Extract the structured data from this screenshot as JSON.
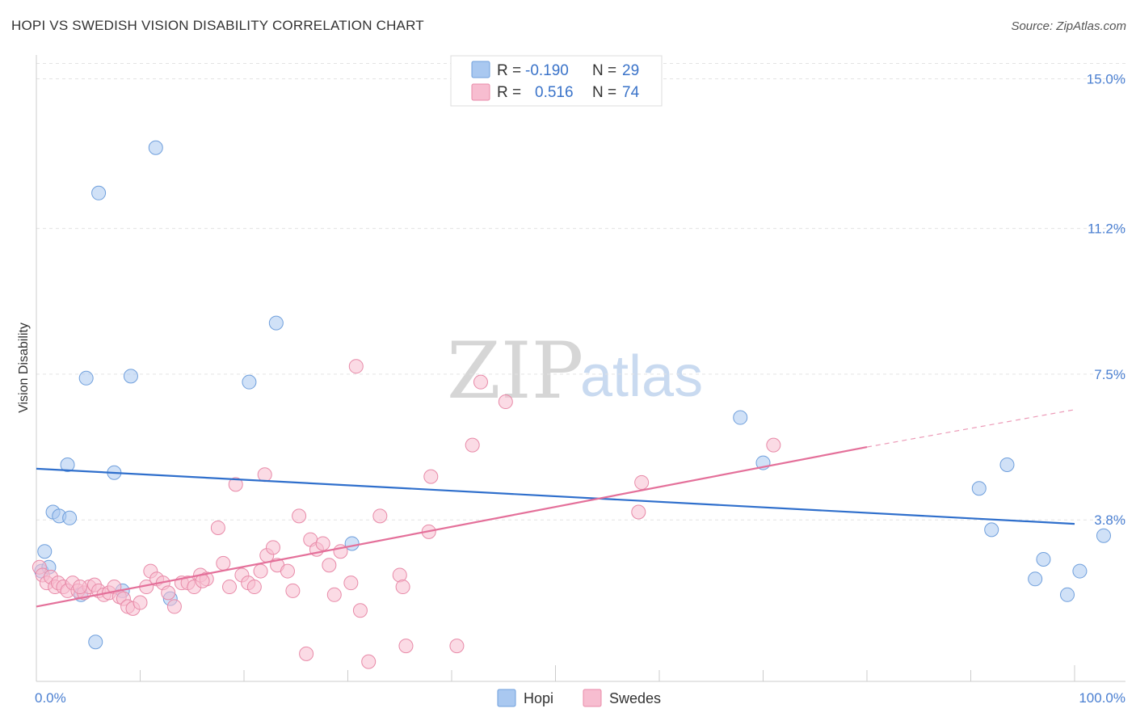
{
  "header": {
    "title": "HOPI VS SWEDISH VISION DISABILITY CORRELATION CHART",
    "source": "Source: ZipAtlas.com"
  },
  "watermark": {
    "zip": "ZIP",
    "atlas": "atlas"
  },
  "legend": {
    "rows": [
      {
        "r_label": "R =",
        "r_value": "-0.190",
        "n_label": "N =",
        "n_value": "29",
        "color": "#a9c8f0",
        "border": "#6f9fdc"
      },
      {
        "r_label": "R =",
        "r_value": "0.516",
        "n_label": "N =",
        "n_value": "74",
        "color": "#f7bdd0",
        "border": "#e88aa8"
      }
    ]
  },
  "bottom_legend": {
    "items": [
      "Hopi",
      "Swedes"
    ]
  },
  "chart_data": {
    "type": "scatter",
    "title": "HOPI VS SWEDISH VISION DISABILITY CORRELATION CHART",
    "xlabel": "",
    "ylabel": "Vision Disability",
    "xlim": [
      0,
      100
    ],
    "ylim": [
      0,
      15.5
    ],
    "x_tick_labels": [
      "0.0%",
      "100.0%"
    ],
    "y_ticks": [
      3.8,
      7.5,
      11.2,
      15.0
    ],
    "y_tick_labels": [
      "3.8%",
      "7.5%",
      "11.2%",
      "15.0%"
    ],
    "grid": true,
    "legend_position": "top-center",
    "series": [
      {
        "name": "Hopi",
        "color": "#6f9fdc",
        "fill": "#a9c8f0",
        "trend": {
          "x0": 0,
          "y0": 5.1,
          "x1": 100,
          "y1": 3.7
        },
        "points": [
          [
            0.5,
            2.5
          ],
          [
            0.8,
            3.0
          ],
          [
            1.2,
            2.6
          ],
          [
            1.6,
            4.0
          ],
          [
            2.2,
            3.9
          ],
          [
            3.0,
            5.2
          ],
          [
            3.2,
            3.85
          ],
          [
            4.3,
            1.9
          ],
          [
            4.8,
            7.4
          ],
          [
            5.7,
            0.7
          ],
          [
            6.0,
            12.1
          ],
          [
            7.5,
            5.0
          ],
          [
            8.3,
            2.0
          ],
          [
            9.1,
            7.45
          ],
          [
            11.5,
            13.25
          ],
          [
            12.9,
            1.8
          ],
          [
            20.5,
            7.3
          ],
          [
            23.1,
            8.8
          ],
          [
            30.4,
            3.2
          ],
          [
            67.8,
            6.4
          ],
          [
            70.0,
            5.25
          ],
          [
            90.8,
            4.6
          ],
          [
            92.0,
            3.55
          ],
          [
            93.5,
            5.2
          ],
          [
            96.2,
            2.3
          ],
          [
            97.0,
            2.8
          ],
          [
            100.5,
            2.5
          ],
          [
            102.8,
            3.4
          ],
          [
            99.3,
            1.9
          ]
        ]
      },
      {
        "name": "Swedes",
        "color": "#e88aa8",
        "fill": "#f7bdd0",
        "trend": {
          "x0": 0,
          "y0": 1.6,
          "x1": 80,
          "y1": 5.65
        },
        "trend_dashed": {
          "x0": 80,
          "y0": 5.65,
          "x1": 100,
          "y1": 6.6
        },
        "points": [
          [
            0.3,
            2.6
          ],
          [
            0.6,
            2.4
          ],
          [
            1.0,
            2.2
          ],
          [
            1.4,
            2.35
          ],
          [
            1.8,
            2.1
          ],
          [
            2.1,
            2.2
          ],
          [
            2.6,
            2.1
          ],
          [
            3.0,
            2.0
          ],
          [
            3.5,
            2.2
          ],
          [
            4.0,
            2.0
          ],
          [
            4.6,
            1.95
          ],
          [
            5.1,
            2.1
          ],
          [
            5.6,
            2.15
          ],
          [
            6.0,
            2.0
          ],
          [
            6.5,
            1.9
          ],
          [
            7.0,
            1.95
          ],
          [
            7.5,
            2.1
          ],
          [
            8.0,
            1.85
          ],
          [
            8.4,
            1.8
          ],
          [
            8.8,
            1.6
          ],
          [
            9.3,
            1.55
          ],
          [
            10.0,
            1.7
          ],
          [
            10.6,
            2.1
          ],
          [
            11.0,
            2.5
          ],
          [
            11.6,
            2.3
          ],
          [
            12.2,
            2.2
          ],
          [
            12.7,
            1.95
          ],
          [
            13.3,
            1.6
          ],
          [
            14.0,
            2.2
          ],
          [
            14.6,
            2.2
          ],
          [
            15.2,
            2.1
          ],
          [
            15.8,
            2.4
          ],
          [
            16.4,
            2.3
          ],
          [
            17.5,
            3.6
          ],
          [
            18.0,
            2.7
          ],
          [
            18.6,
            2.1
          ],
          [
            19.2,
            4.7
          ],
          [
            19.8,
            2.4
          ],
          [
            20.4,
            2.2
          ],
          [
            21.0,
            2.1
          ],
          [
            21.6,
            2.5
          ],
          [
            22.2,
            2.9
          ],
          [
            22.8,
            3.1
          ],
          [
            23.2,
            2.65
          ],
          [
            24.2,
            2.5
          ],
          [
            24.7,
            2.0
          ],
          [
            25.3,
            3.9
          ],
          [
            26.0,
            0.4
          ],
          [
            26.4,
            3.3
          ],
          [
            27.0,
            3.05
          ],
          [
            27.6,
            3.2
          ],
          [
            28.2,
            2.65
          ],
          [
            28.7,
            1.9
          ],
          [
            29.3,
            3.0
          ],
          [
            30.3,
            2.2
          ],
          [
            30.8,
            7.7
          ],
          [
            31.2,
            1.5
          ],
          [
            32.0,
            0.2
          ],
          [
            33.1,
            3.9
          ],
          [
            35.0,
            2.4
          ],
          [
            35.3,
            2.1
          ],
          [
            35.6,
            0.6
          ],
          [
            37.8,
            3.5
          ],
          [
            38.0,
            4.9
          ],
          [
            40.5,
            0.6
          ],
          [
            42.0,
            5.7
          ],
          [
            42.8,
            7.3
          ],
          [
            45.2,
            6.8
          ],
          [
            58.0,
            4.0
          ],
          [
            58.3,
            4.75
          ],
          [
            71.0,
            5.7
          ],
          [
            22.0,
            4.95
          ],
          [
            16.0,
            2.25
          ],
          [
            4.2,
            2.1
          ]
        ]
      }
    ]
  }
}
